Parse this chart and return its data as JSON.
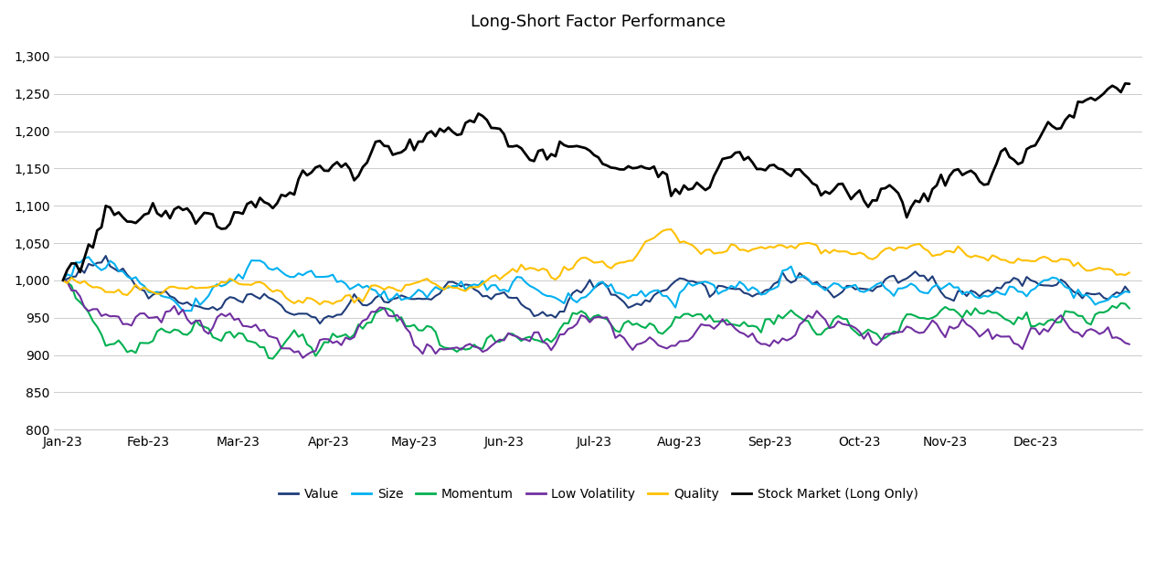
{
  "title": "Long-Short Factor Performance",
  "background_color": "#ffffff",
  "ylim": [
    800,
    1320
  ],
  "yticks": [
    800,
    850,
    900,
    950,
    1000,
    1050,
    1100,
    1150,
    1200,
    1250,
    1300
  ],
  "series": {
    "Value": {
      "color": "#1f3d7a",
      "linewidth": 1.5,
      "waypoints": [
        1000,
        1025,
        1030,
        1015,
        985,
        975,
        970,
        975,
        975,
        980,
        960,
        955,
        935,
        945,
        960,
        975,
        975,
        970,
        985,
        990,
        975,
        975,
        960,
        955,
        990,
        990,
        970,
        965,
        985,
        995,
        985,
        980,
        985,
        990,
        1000,
        990,
        975,
        985,
        980,
        985,
        995,
        985,
        990,
        990,
        985,
        985,
        990,
        985,
        990,
        990,
        988
      ]
    },
    "Size": {
      "color": "#00b0f0",
      "linewidth": 1.5,
      "waypoints": [
        1000,
        1042,
        1030,
        1010,
        990,
        985,
        975,
        990,
        1000,
        1020,
        1010,
        1000,
        1010,
        1010,
        1000,
        985,
        990,
        985,
        985,
        985,
        990,
        985,
        985,
        985,
        980,
        990,
        985,
        985,
        985,
        985,
        985,
        985,
        985,
        985,
        990,
        990,
        985,
        980,
        985,
        985,
        985,
        985,
        990,
        990,
        990,
        985,
        990,
        990,
        990,
        990,
        990
      ]
    },
    "Momentum": {
      "color": "#00b050",
      "linewidth": 1.5,
      "waypoints": [
        1000,
        975,
        930,
        900,
        930,
        940,
        935,
        945,
        945,
        940,
        920,
        920,
        915,
        920,
        930,
        945,
        935,
        930,
        930,
        925,
        920,
        920,
        920,
        920,
        950,
        960,
        940,
        935,
        940,
        955,
        945,
        945,
        940,
        940,
        955,
        950,
        940,
        945,
        940,
        940,
        950,
        945,
        945,
        940,
        940,
        940,
        940,
        935,
        940,
        935,
        928
      ]
    },
    "Low Volatility": {
      "color": "#7030a0",
      "linewidth": 1.5,
      "waypoints": [
        1000,
        975,
        960,
        945,
        950,
        950,
        940,
        945,
        945,
        940,
        910,
        908,
        905,
        912,
        925,
        945,
        935,
        920,
        915,
        910,
        910,
        915,
        915,
        915,
        935,
        945,
        925,
        918,
        920,
        935,
        930,
        930,
        920,
        920,
        940,
        935,
        930,
        940,
        930,
        935,
        940,
        935,
        935,
        930,
        925,
        920,
        925,
        920,
        925,
        922,
        920
      ]
    },
    "Quality": {
      "color": "#ffc000",
      "linewidth": 1.5,
      "waypoints": [
        1000,
        988,
        988,
        990,
        990,
        992,
        990,
        992,
        992,
        988,
        975,
        970,
        960,
        968,
        980,
        995,
        990,
        988,
        988,
        990,
        1000,
        1010,
        1010,
        1010,
        1020,
        1035,
        1040,
        1045,
        1048,
        1042,
        1038,
        1035,
        1038,
        1042,
        1048,
        1045,
        1040,
        1042,
        1038,
        1042,
        1042,
        1040,
        1038,
        1035,
        1035,
        1030,
        1030,
        1028,
        1025,
        1025,
        1022
      ]
    },
    "Stock Market (Long Only)": {
      "color": "#000000",
      "linewidth": 2.0,
      "waypoints": [
        1000,
        1040,
        1080,
        1060,
        1070,
        1080,
        1080,
        1080,
        1090,
        1110,
        1115,
        1120,
        1130,
        1145,
        1155,
        1165,
        1175,
        1195,
        1205,
        1200,
        1200,
        1195,
        1185,
        1180,
        1175,
        1170,
        1170,
        1160,
        1155,
        1150,
        1145,
        1150,
        1148,
        1145,
        1145,
        1135,
        1125,
        1120,
        1110,
        1105,
        1110,
        1120,
        1130,
        1140,
        1155,
        1170,
        1195,
        1215,
        1240,
        1258,
        1265
      ]
    }
  },
  "n_points": 250,
  "n_waypoints": 51,
  "date_labels": [
    "Jan-23",
    "Feb-23",
    "Mar-23",
    "Apr-23",
    "May-23",
    "Jun-23",
    "Jul-23",
    "Aug-23",
    "Sep-23",
    "Oct-23",
    "Nov-23",
    "Dec-23"
  ],
  "month_ticks": [
    0,
    20,
    41,
    62,
    82,
    103,
    124,
    144,
    165,
    186,
    206,
    227
  ],
  "legend_order": [
    "Value",
    "Size",
    "Momentum",
    "Low Volatility",
    "Quality",
    "Stock Market (Long Only)"
  ],
  "figsize": [
    12.65,
    6.25
  ],
  "dpi": 100
}
